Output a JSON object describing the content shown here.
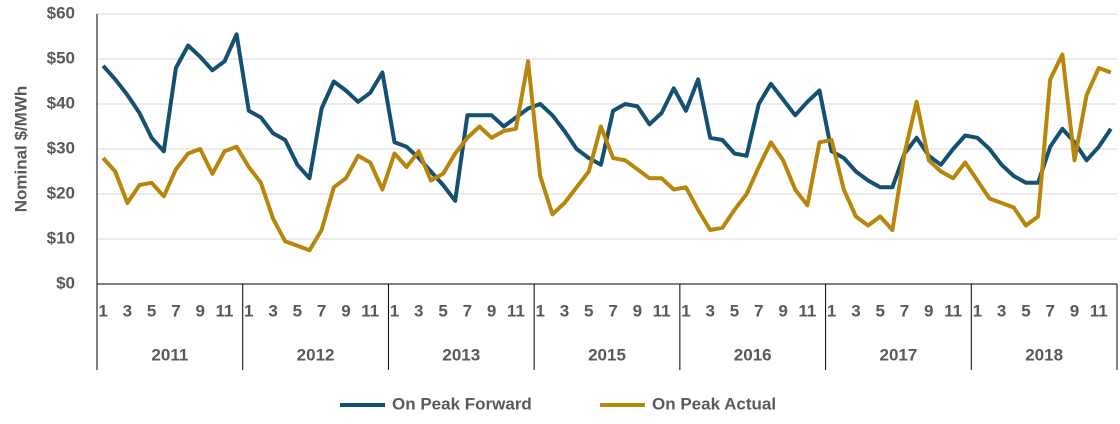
{
  "chart_data": {
    "type": "line",
    "y_label": "Nominal $/MWh",
    "ylim": [
      0,
      60
    ],
    "yticks": [
      {
        "value": 0,
        "label": "$0"
      },
      {
        "value": 10,
        "label": "$10"
      },
      {
        "value": 20,
        "label": "$20"
      },
      {
        "value": 30,
        "label": "$30"
      },
      {
        "value": 40,
        "label": "$40"
      },
      {
        "value": 50,
        "label": "$50"
      },
      {
        "value": 60,
        "label": "$60"
      }
    ],
    "grid": true,
    "legend": "bottom",
    "categories": [
      "1",
      null,
      "3",
      null,
      "5",
      null,
      "7",
      null,
      "9",
      null,
      "11",
      null,
      "1",
      null,
      "3",
      null,
      "5",
      null,
      "7",
      null,
      "9",
      null,
      "11",
      null,
      "1",
      null,
      "3",
      null,
      "5",
      null,
      "7",
      null,
      "9",
      null,
      "11",
      null,
      "1",
      null,
      "3",
      null,
      "5",
      null,
      "7",
      null,
      "9",
      null,
      "11",
      null,
      "1",
      null,
      "3",
      null,
      "5",
      null,
      "7",
      null,
      "9",
      null,
      "11",
      null,
      "1",
      null,
      "3",
      null,
      "5",
      null,
      "7",
      null,
      "9",
      null,
      "11",
      null,
      "1",
      null,
      "3",
      null,
      "5",
      null,
      "7",
      null,
      "9",
      null,
      "11",
      null
    ],
    "groups": [
      "2011",
      "2012",
      "2013",
      "2015",
      "2016",
      "2017",
      "2018"
    ],
    "series": [
      {
        "name": "On Peak Forward",
        "color": "#145072",
        "values": [
          48.5,
          45.5,
          42,
          38,
          32.5,
          29.5,
          48,
          53,
          50.5,
          47.5,
          49.5,
          55.5,
          38.5,
          37,
          33.5,
          32,
          26.5,
          23.5,
          39,
          45,
          43,
          40.5,
          42.5,
          47,
          31.5,
          30.5,
          28,
          25,
          22,
          18.5,
          37.5,
          37.5,
          37.5,
          35,
          37,
          39,
          40,
          37.5,
          34,
          30,
          28,
          26.5,
          38.5,
          40,
          39.5,
          35.5,
          38,
          43.5,
          38.5,
          45.5,
          32.5,
          32,
          29,
          28.5,
          40,
          44.5,
          41,
          37.5,
          40.5,
          43,
          29.5,
          28,
          25,
          23,
          21.5,
          21.5,
          29,
          32.5,
          28.5,
          26.5,
          30,
          33,
          32.5,
          30,
          26.5,
          24,
          22.5,
          22.5,
          30.5,
          34.5,
          31.5,
          27.5,
          30.5,
          34.5
        ]
      },
      {
        "name": "On Peak Actual",
        "color": "#b8860b",
        "values": [
          28,
          25,
          18,
          22,
          22.5,
          19.5,
          25.5,
          29,
          30,
          24.5,
          29.5,
          30.5,
          26,
          22.5,
          14.5,
          9.5,
          8.5,
          7.5,
          12,
          21.5,
          23.5,
          28.5,
          27,
          21,
          29,
          26,
          29.5,
          23,
          24.5,
          29,
          32.5,
          35,
          32.5,
          34,
          34.5,
          49.5,
          24,
          15.5,
          18,
          21.5,
          25,
          35,
          28,
          27.5,
          25.5,
          23.5,
          23.5,
          21,
          21.5,
          16.5,
          12,
          12.5,
          16.5,
          20,
          26,
          31.5,
          27.5,
          21,
          17.5,
          31.5,
          32,
          21,
          15,
          13,
          15,
          12,
          29,
          40.5,
          27.5,
          25,
          23.5,
          27,
          23,
          19,
          18,
          17,
          13,
          15,
          45.5,
          51,
          27.5,
          42,
          48,
          47
        ]
      }
    ]
  }
}
